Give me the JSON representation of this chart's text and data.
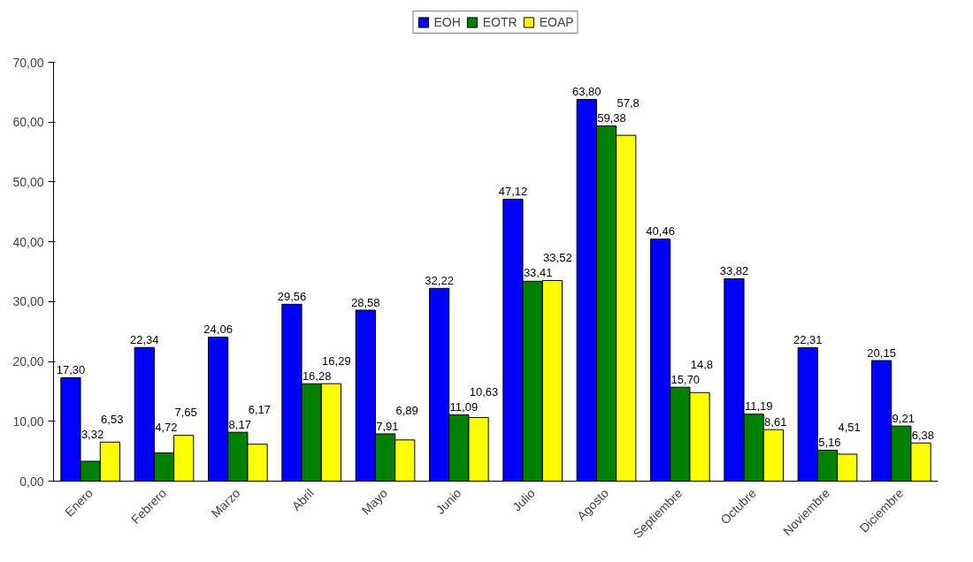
{
  "chart_data": {
    "type": "bar",
    "categories": [
      "Enero",
      "Febrero",
      "Marzo",
      "Abril",
      "Mayo",
      "Junio",
      "Julio",
      "Agosto",
      "Septiembre",
      "Octubre",
      "Noviembre",
      "Diciembre"
    ],
    "series": [
      {
        "name": "EOH",
        "color": "#0000ff",
        "values": [
          17.3,
          22.34,
          24.06,
          29.56,
          28.58,
          32.22,
          47.12,
          63.8,
          40.46,
          33.82,
          22.31,
          20.15
        ],
        "value_labels": [
          "17,30",
          "22,34",
          "24,06",
          "29,56",
          "28,58",
          "32,22",
          "47,12",
          "63,80",
          "40,46",
          "33,82",
          "22,31",
          "20,15"
        ]
      },
      {
        "name": "EOTR",
        "color": "#008000",
        "values": [
          3.32,
          4.72,
          8.17,
          16.28,
          7.91,
          11.09,
          33.41,
          59.38,
          15.7,
          11.19,
          5.16,
          9.21
        ],
        "value_labels": [
          "3,32",
          "4,72",
          "8,17",
          "16,28",
          "7,91",
          "11,09",
          "33,41",
          "59,38",
          "15,70",
          "11,19",
          "5,16",
          "9,21"
        ]
      },
      {
        "name": "EOAP",
        "color": "#ffff00",
        "values": [
          6.53,
          7.65,
          6.17,
          16.29,
          6.89,
          10.63,
          33.52,
          57.8,
          14.8,
          8.61,
          4.51,
          6.38
        ],
        "value_labels": [
          "6,53",
          "7,65",
          "6,17",
          "16,29",
          "6,89",
          "10,63",
          "33,52",
          "57,8",
          "14,8",
          "8,61",
          "4,51",
          "6,38"
        ]
      }
    ],
    "ylim": [
      0,
      70
    ],
    "yticks": [
      {
        "value": 0,
        "label": "0,00"
      },
      {
        "value": 10,
        "label": "10,00"
      },
      {
        "value": 20,
        "label": "20,00"
      },
      {
        "value": 30,
        "label": "30,00"
      },
      {
        "value": 40,
        "label": "40,00"
      },
      {
        "value": 50,
        "label": "50,00"
      },
      {
        "value": 60,
        "label": "60,00"
      },
      {
        "value": 70,
        "label": "70,00"
      }
    ],
    "grid": false,
    "legend": "top"
  }
}
